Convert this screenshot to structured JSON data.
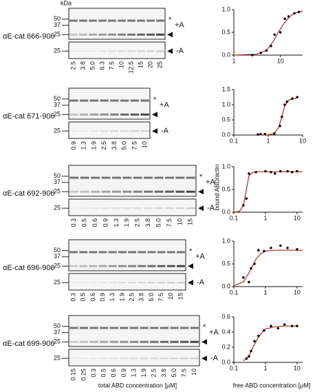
{
  "figure": {
    "kda": "kDa",
    "gel_axis_label": "total ABD concentration [μM]",
    "chart_axis_label": "free ABD concentration [μM]",
    "y_axis_label": "bound ABD/actin"
  },
  "panels": [
    {
      "label": "αE-cat 666-906",
      "markers_upper": [
        "50",
        "37",
        "25"
      ],
      "markers_lower": [
        "25"
      ],
      "star": "*",
      "plus": "+A",
      "minus": "-A",
      "lanes": [
        "2.5",
        "3.8",
        "5.0",
        "6.3",
        "7.5",
        "10",
        "12.5",
        "15",
        "20",
        "25"
      ],
      "chart": {
        "type": "scatter",
        "xlog": true,
        "xlim": [
          1,
          30
        ],
        "xticks": [
          1,
          10
        ],
        "ylim": [
          0,
          1
        ],
        "yticks": [
          {
            "value": 0,
            "label": "0.0"
          },
          {
            "value": 0.5,
            "label": "0.5"
          },
          {
            "value": 1,
            "label": "1.0"
          }
        ],
        "points": {
          "x": [
            2.5,
            3.8,
            5.0,
            6.3,
            7.5,
            10,
            12.5,
            15,
            20,
            25
          ],
          "values": [
            0.0,
            0.05,
            0.1,
            0.2,
            0.45,
            0.5,
            0.8,
            0.85,
            0.92,
            0.95
          ]
        },
        "fit": {
          "color": "#b22222",
          "x": [
            1,
            3,
            5,
            7,
            9,
            12,
            16,
            20,
            30
          ],
          "values": [
            0,
            0.02,
            0.1,
            0.3,
            0.5,
            0.7,
            0.85,
            0.92,
            0.97
          ]
        }
      }
    },
    {
      "label": "αE-cat 671-906",
      "markers_upper": [
        "50",
        "37",
        "25"
      ],
      "markers_lower": [
        "25"
      ],
      "star": "*",
      "plus": "+A",
      "minus": "-A",
      "lanes": [
        "0.9",
        "1.3",
        "1.9",
        "2.5",
        "3.8",
        "5.0",
        "7.5",
        "10"
      ],
      "chart": {
        "type": "scatter",
        "xlog": true,
        "xlim": [
          0.1,
          10
        ],
        "xticks": [
          0.1,
          1,
          10
        ],
        "ylim": [
          0,
          1.5
        ],
        "yticks": [
          {
            "value": 0,
            "label": "0.0"
          },
          {
            "value": 0.5,
            "label": "0.5"
          },
          {
            "value": 1,
            "label": "1.0"
          },
          {
            "value": 1.5,
            "label": "1.5"
          }
        ],
        "points": {
          "x": [
            0.5,
            0.6,
            0.8,
            1.5,
            2.2,
            2.5,
            3,
            3.5,
            5,
            7
          ],
          "values": [
            0.02,
            0.03,
            0.03,
            0.05,
            0.3,
            0.6,
            1.0,
            1.1,
            1.2,
            1.25
          ]
        },
        "fit": {
          "color": "#b22222",
          "x": [
            0.5,
            1,
            1.5,
            2,
            2.5,
            3,
            4,
            5,
            7
          ],
          "values": [
            0,
            0.01,
            0.05,
            0.25,
            0.6,
            0.95,
            1.15,
            1.2,
            1.23
          ]
        }
      }
    },
    {
      "label": "αE-cat 692-906",
      "markers_upper": [
        "50",
        "37",
        "25"
      ],
      "markers_lower": [
        "25"
      ],
      "star": "*",
      "plus": "+A",
      "minus": "-A",
      "lanes": [
        "0.3",
        "0.5",
        "0.6",
        "0.9",
        "1.3",
        "1.9",
        "2.5",
        "3.8",
        "5.0",
        "7.5",
        "10",
        "15"
      ],
      "chart": {
        "type": "scatter",
        "xlog": true,
        "xlim": [
          0.1,
          15
        ],
        "xticks": [
          0.1,
          1,
          10
        ],
        "ylim": [
          0,
          1
        ],
        "yticks": [
          {
            "value": 0,
            "label": "0.0"
          },
          {
            "value": 0.5,
            "label": "0.5"
          },
          {
            "value": 1,
            "label": "1.0"
          }
        ],
        "points": {
          "x": [
            0.2,
            0.25,
            0.3,
            0.5,
            1,
            1.5,
            2,
            3,
            5,
            7,
            10
          ],
          "values": [
            0.15,
            0.3,
            0.85,
            0.88,
            0.9,
            0.88,
            0.85,
            0.9,
            0.9,
            0.88,
            0.9
          ]
        },
        "fit": {
          "color": "#b22222",
          "x": [
            0.1,
            0.15,
            0.2,
            0.25,
            0.3,
            0.4,
            0.6,
            1,
            10,
            15
          ],
          "values": [
            0,
            0.02,
            0.15,
            0.5,
            0.8,
            0.88,
            0.89,
            0.89,
            0.89,
            0.89
          ]
        }
      }
    },
    {
      "label": "αE-cat 696-906",
      "markers_upper": [
        "50",
        "37",
        "25"
      ],
      "markers_lower": [
        "25"
      ],
      "star": "*",
      "plus": "+A",
      "minus": "-A",
      "lanes": [
        "0.3",
        "0.5",
        "0.6",
        "0.9",
        "1.3",
        "1.9",
        "2.5",
        "3.8",
        "5.0",
        "7.5",
        "10",
        "15"
      ],
      "chart": {
        "type": "scatter",
        "xlog": true,
        "xlim": [
          0.1,
          15
        ],
        "xticks": [
          0.1,
          1,
          10
        ],
        "ylim": [
          0,
          1
        ],
        "yticks": [
          {
            "value": 0,
            "label": "0.0"
          },
          {
            "value": 0.5,
            "label": "0.5"
          },
          {
            "value": 1,
            "label": "1.0"
          }
        ],
        "points": {
          "x": [
            0.2,
            0.3,
            0.35,
            0.45,
            0.6,
            0.9,
            1.5,
            3,
            5,
            10
          ],
          "values": [
            0.2,
            0.1,
            0.4,
            0.5,
            0.8,
            0.78,
            0.85,
            0.9,
            0.85,
            0.82
          ]
        },
        "fit": {
          "color": "#b22222",
          "x": [
            0.1,
            0.2,
            0.3,
            0.5,
            0.7,
            1,
            2,
            10,
            15
          ],
          "values": [
            0.02,
            0.1,
            0.3,
            0.6,
            0.72,
            0.78,
            0.8,
            0.8,
            0.8
          ]
        }
      }
    },
    {
      "label": "αE-cat 699-906",
      "markers_upper": [
        "50",
        "37",
        "25"
      ],
      "markers_lower": [
        "25"
      ],
      "star": "*",
      "plus": "+A",
      "minus": "-A",
      "lanes": [
        "0.15",
        "0.25",
        "0.3",
        "0.5",
        "0.6",
        "0.9",
        "1.3",
        "1.9",
        "2.5",
        "3.8",
        "5.0",
        "7.5",
        "10"
      ],
      "chart": {
        "type": "scatter",
        "xlog": true,
        "xlim": [
          0.1,
          15
        ],
        "xticks": [
          0.1,
          1,
          10
        ],
        "ylim": [
          0,
          0.6
        ],
        "yticks": [
          {
            "value": 0,
            "label": "0.0"
          },
          {
            "value": 0.2,
            "label": "0.2"
          },
          {
            "value": 0.4,
            "label": "0.4"
          },
          {
            "value": 0.6,
            "label": "0.6"
          }
        ],
        "points": {
          "x": [
            0.25,
            0.3,
            0.35,
            0.45,
            0.6,
            0.9,
            1.5,
            2.5,
            4,
            7,
            10
          ],
          "values": [
            0.05,
            0.08,
            0.15,
            0.28,
            0.35,
            0.42,
            0.48,
            0.45,
            0.5,
            0.48,
            0.48
          ]
        },
        "fit": {
          "color": "#b22222",
          "x": [
            0.2,
            0.3,
            0.4,
            0.6,
            0.8,
            1,
            2,
            4,
            10
          ],
          "values": [
            0.02,
            0.08,
            0.2,
            0.33,
            0.4,
            0.44,
            0.47,
            0.48,
            0.48
          ]
        }
      }
    }
  ]
}
